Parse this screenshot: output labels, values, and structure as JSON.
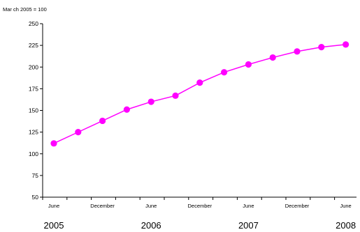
{
  "chart_data": {
    "type": "line",
    "title": "",
    "unit_note": "Mar ch 2005 = 100",
    "xlabel": "",
    "ylabel": "",
    "ylim": [
      50,
      250
    ],
    "y_ticks": [
      50,
      75,
      100,
      125,
      150,
      175,
      200,
      225,
      250
    ],
    "x_tick_labels": [
      "June",
      "December",
      "June",
      "December",
      "June",
      "December",
      "June"
    ],
    "year_labels": [
      "2005",
      "2006",
      "2007",
      "2008"
    ],
    "grid": false,
    "legend": "none",
    "series": [
      {
        "color": "#ff00ff",
        "points": [
          {
            "x": "2005-06",
            "y": 112
          },
          {
            "x": "2005-09",
            "y": 125
          },
          {
            "x": "2005-12",
            "y": 138
          },
          {
            "x": "2006-03",
            "y": 151
          },
          {
            "x": "2006-06",
            "y": 160
          },
          {
            "x": "2006-09",
            "y": 167
          },
          {
            "x": "2006-12",
            "y": 182
          },
          {
            "x": "2007-03",
            "y": 194
          },
          {
            "x": "2007-06",
            "y": 203
          },
          {
            "x": "2007-09",
            "y": 211
          },
          {
            "x": "2007-12",
            "y": 218
          },
          {
            "x": "2008-03",
            "y": 223
          },
          {
            "x": "2008-06",
            "y": 226
          }
        ]
      }
    ]
  }
}
